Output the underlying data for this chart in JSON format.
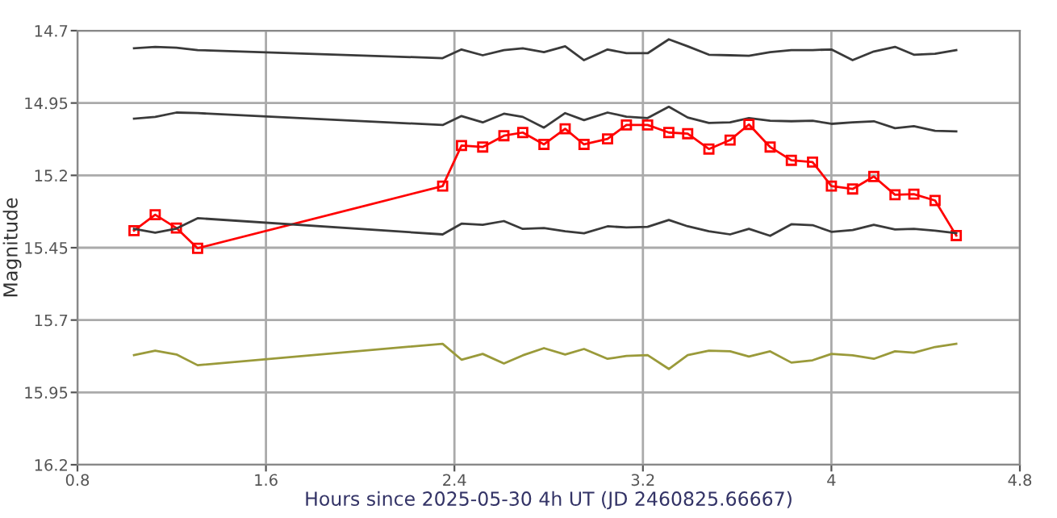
{
  "chart_data": {
    "type": "line",
    "xlabel": "Hours since 2025-05-30 4h UT (JD 2460825.66667)",
    "ylabel": "Magnitude",
    "x": [
      1.04,
      1.13,
      1.22,
      1.31,
      2.35,
      2.43,
      2.52,
      2.61,
      2.69,
      2.78,
      2.87,
      2.95,
      3.05,
      3.13,
      3.22,
      3.31,
      3.39,
      3.48,
      3.57,
      3.65,
      3.74,
      3.83,
      3.92,
      4.0,
      4.09,
      4.18,
      4.27,
      4.35,
      4.44,
      4.53
    ],
    "series": [
      {
        "color": "#3a3a3a",
        "marker": "none",
        "values": [
          14.761,
          14.756,
          14.759,
          14.767,
          14.795,
          14.765,
          14.785,
          14.767,
          14.761,
          14.774,
          14.754,
          14.802,
          14.765,
          14.778,
          14.778,
          14.73,
          14.754,
          14.783,
          14.785,
          14.787,
          14.774,
          14.767,
          14.767,
          14.765,
          14.802,
          14.772,
          14.756,
          14.783,
          14.78,
          14.767
        ]
      },
      {
        "color": "#3a3a3a",
        "marker": "none",
        "values": [
          15.004,
          14.998,
          14.983,
          14.985,
          15.026,
          14.995,
          15.017,
          14.987,
          14.998,
          15.035,
          14.985,
          15.009,
          14.983,
          14.997,
          15.002,
          14.963,
          15.0,
          15.019,
          15.017,
          15.002,
          15.011,
          15.013,
          15.011,
          15.022,
          15.017,
          15.013,
          15.037,
          15.03,
          15.046,
          15.048
        ]
      },
      {
        "color": "#ff0000",
        "marker": "square",
        "values": [
          15.391,
          15.336,
          15.382,
          15.452,
          15.237,
          15.097,
          15.102,
          15.063,
          15.052,
          15.093,
          15.039,
          15.093,
          15.074,
          15.026,
          15.026,
          15.052,
          15.056,
          15.109,
          15.078,
          15.024,
          15.102,
          15.148,
          15.154,
          15.237,
          15.247,
          15.204,
          15.267,
          15.265,
          15.287,
          15.408
        ]
      },
      {
        "color": "#3a3a3a",
        "marker": "none",
        "values": [
          15.385,
          15.398,
          15.384,
          15.348,
          15.404,
          15.367,
          15.371,
          15.358,
          15.385,
          15.382,
          15.393,
          15.4,
          15.376,
          15.38,
          15.378,
          15.354,
          15.376,
          15.393,
          15.404,
          15.385,
          15.409,
          15.369,
          15.372,
          15.395,
          15.389,
          15.371,
          15.387,
          15.385,
          15.391,
          15.4
        ]
      },
      {
        "color": "#9a9a3a",
        "marker": "none",
        "values": [
          15.821,
          15.806,
          15.819,
          15.856,
          15.782,
          15.837,
          15.817,
          15.85,
          15.822,
          15.797,
          15.819,
          15.8,
          15.834,
          15.824,
          15.821,
          15.869,
          15.821,
          15.806,
          15.808,
          15.826,
          15.808,
          15.847,
          15.839,
          15.817,
          15.822,
          15.834,
          15.808,
          15.813,
          15.793,
          15.782
        ]
      }
    ],
    "xlim": [
      0.8,
      4.8
    ],
    "xticks": [
      0.8,
      1.6,
      2.4,
      3.2,
      4,
      4.8
    ],
    "ylim": [
      16.2,
      14.7
    ],
    "yticks": [
      14.7,
      14.95,
      15.2,
      15.45,
      15.7,
      15.95,
      16.2
    ],
    "grid": true,
    "line_style": "solid"
  }
}
